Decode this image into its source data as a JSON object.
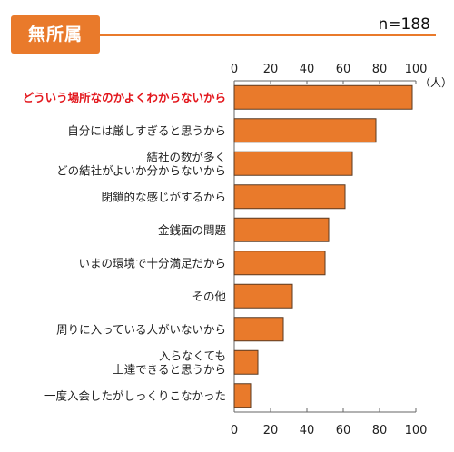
{
  "header": {
    "title": "無所属",
    "sample_size": "n=188",
    "unit": "（人）"
  },
  "colors": {
    "accent": "#e97a2b",
    "bar_fill": "#e97a2b",
    "bar_stroke": "#5a3a22",
    "highlight_text": "#e3171d"
  },
  "chart_data": {
    "type": "bar",
    "orientation": "horizontal",
    "title": "",
    "xlabel": "",
    "ylabel": "",
    "unit": "（人）",
    "xlim": [
      0,
      100
    ],
    "ticks": [
      0,
      20,
      40,
      60,
      80,
      100
    ],
    "grid": false,
    "categories": [
      [
        "どういう場所なのかよくわからないから"
      ],
      [
        "自分には厳しすぎると思うから"
      ],
      [
        "結社の数が多く",
        "どの結社がよいか分からないから"
      ],
      [
        "閉鎖的な感じがするから"
      ],
      [
        "金銭面の問題"
      ],
      [
        "いまの環境で十分満足だから"
      ],
      [
        "その他"
      ],
      [
        "周りに入っている人がいないから"
      ],
      [
        "入らなくても",
        "上達できると思うから"
      ],
      [
        "一度入会したがしっくりこなかった"
      ]
    ],
    "values": [
      98,
      78,
      65,
      61,
      52,
      50,
      32,
      27,
      13,
      9
    ],
    "highlight_index": 0
  }
}
